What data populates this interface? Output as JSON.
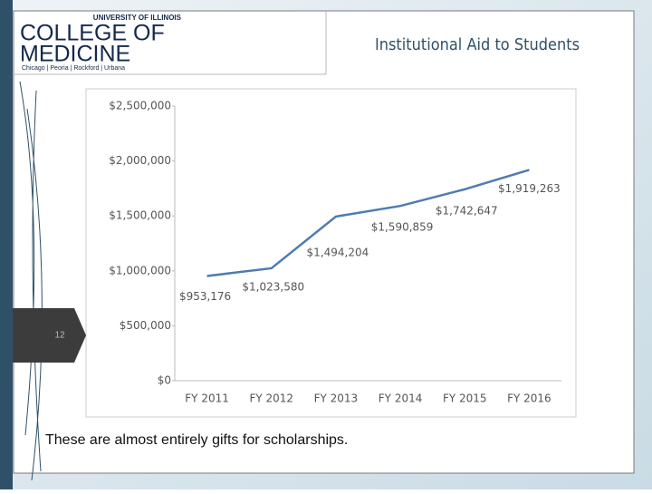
{
  "header": {
    "university": "UNIVERSITY OF ILLINOIS",
    "college_line1": "COLLEGE OF",
    "college_line2": "MEDICINE",
    "campuses": "Chicago | Peoria | Rockford | Urbana"
  },
  "slide_number": "12",
  "caption": "These are almost entirely gifts for scholarships.",
  "chart_data": {
    "type": "line",
    "title": "Institutional Aid to Students",
    "categories": [
      "FY 2011",
      "FY 2012",
      "FY 2013",
      "FY 2014",
      "FY 2015",
      "FY 2016"
    ],
    "values": [
      953176,
      1023580,
      1494204,
      1590859,
      1742647,
      1919263
    ],
    "value_labels": [
      "$953,176",
      "$1,023,580",
      "$1,494,204",
      "$1,590,859",
      "$1,742,647",
      "$1,919,263"
    ],
    "color": "#4f7bb0",
    "ylim": [
      0,
      2500000
    ],
    "yticks": [
      {
        "value": 0,
        "label": "$0"
      },
      {
        "value": 500000,
        "label": "$500,000"
      },
      {
        "value": 1000000,
        "label": "$1,000,000"
      },
      {
        "value": 1500000,
        "label": "$1,500,000"
      },
      {
        "value": 2000000,
        "label": "$2,000,000"
      },
      {
        "value": 2500000,
        "label": "$2,500,000"
      }
    ],
    "grid": false
  }
}
